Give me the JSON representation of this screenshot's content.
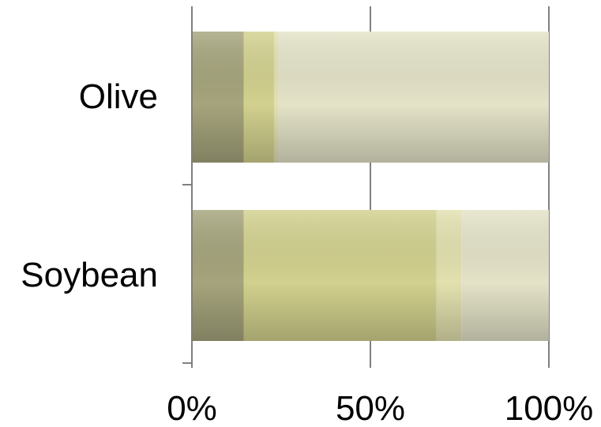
{
  "chart_data": {
    "type": "bar",
    "orientation": "horizontal",
    "stacked": "percent",
    "title": "",
    "xlabel": "",
    "ylabel": "",
    "categories": [
      "Olive",
      "Soybean"
    ],
    "xlim": [
      0,
      100
    ],
    "x_ticks": [
      0,
      50,
      100
    ],
    "x_tick_labels": [
      "0%",
      "50%",
      "100%"
    ],
    "grid": "vertical",
    "legend": "none",
    "series": [
      {
        "values": [
          14.5,
          14.5
        ],
        "color": "#a5a47c"
      },
      {
        "values": [
          8.5,
          54
        ],
        "color": "#d2d18e"
      },
      {
        "values": [
          1,
          7
        ],
        "color": "#e2e1ae"
      },
      {
        "values": [
          76,
          24.5
        ],
        "color": "#e4e3c8"
      }
    ]
  }
}
